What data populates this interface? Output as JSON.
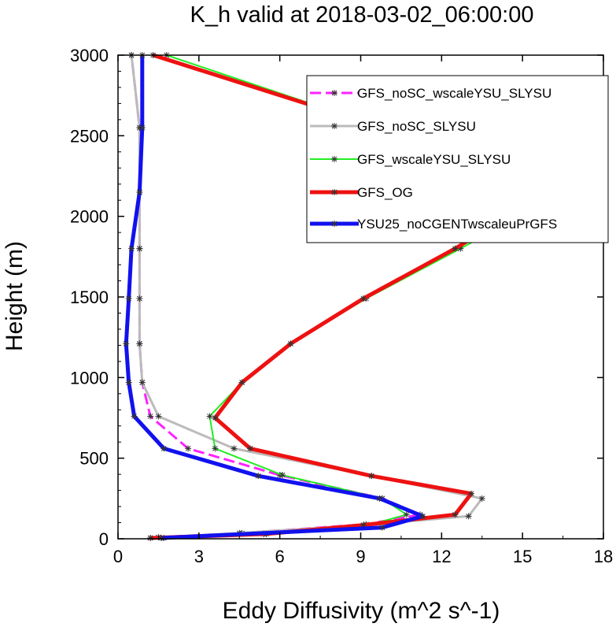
{
  "chart_data": {
    "type": "line",
    "title": "K_h valid at 2018-03-02_06:00:00",
    "xlabel": "Eddy Diffusivity (m^2 s^-1)",
    "ylabel": "Height (m)",
    "xlim": [
      0,
      18
    ],
    "ylim": [
      0,
      3000
    ],
    "xticks": [
      0,
      3,
      6,
      9,
      12,
      15,
      18
    ],
    "yticks": [
      0,
      500,
      1000,
      1500,
      2000,
      2500,
      3000
    ],
    "legend_position": "top-right",
    "series": [
      {
        "name": "GFS_noSC_wscaleYSU_SLYSU",
        "color": "#ff22ff",
        "dash": "dashed",
        "width": 3,
        "points": [
          [
            1.5,
            10
          ],
          [
            4.6,
            35
          ],
          [
            9.2,
            90
          ],
          [
            11.2,
            150
          ],
          [
            9.8,
            250
          ],
          [
            6,
            395
          ],
          [
            2.6,
            560
          ],
          [
            1.2,
            760
          ],
          [
            0.9,
            970
          ],
          [
            0.8,
            1210
          ],
          [
            0.8,
            1490
          ],
          [
            0.8,
            1800
          ],
          [
            0.8,
            2150
          ],
          [
            0.8,
            2550
          ],
          [
            0.5,
            3000
          ]
        ]
      },
      {
        "name": "GFS_noSC_SLYSU",
        "color": "#bbbbbb",
        "dash": "solid",
        "width": 3,
        "points": [
          [
            1.2,
            5
          ],
          [
            4.5,
            35
          ],
          [
            9.1,
            85
          ],
          [
            13,
            140
          ],
          [
            13.5,
            250
          ],
          [
            9.4,
            390
          ],
          [
            4.3,
            560
          ],
          [
            1.5,
            760
          ],
          [
            0.9,
            970
          ],
          [
            0.8,
            1210
          ],
          [
            0.8,
            1490
          ],
          [
            0.8,
            1800
          ],
          [
            0.8,
            2150
          ],
          [
            0.8,
            2550
          ],
          [
            0.5,
            3000
          ]
        ]
      },
      {
        "name": "GFS_wscaleYSU_SLYSU",
        "color": "#22ee22",
        "dash": "solid",
        "width": 2,
        "points": [
          [
            1.7,
            5
          ],
          [
            5.4,
            30
          ],
          [
            9.2,
            80
          ],
          [
            10.7,
            150
          ],
          [
            9.8,
            250
          ],
          [
            6.1,
            395
          ],
          [
            3.6,
            560
          ],
          [
            3.4,
            760
          ],
          [
            4.6,
            970
          ],
          [
            6.4,
            1210
          ],
          [
            9.2,
            1490
          ],
          [
            12.7,
            1800
          ],
          [
            16.5,
            2150
          ],
          [
            9.8,
            2550
          ],
          [
            1.8,
            3000
          ]
        ]
      },
      {
        "name": "GFS_OG",
        "color": "#ee1111",
        "dash": "solid",
        "width": 5,
        "points": [
          [
            1.2,
            5
          ],
          [
            5.5,
            30
          ],
          [
            9.1,
            85
          ],
          [
            12.5,
            150
          ],
          [
            13.1,
            280
          ],
          [
            9.4,
            390
          ],
          [
            4.9,
            560
          ],
          [
            3.6,
            750
          ],
          [
            4.6,
            970
          ],
          [
            6.4,
            1210
          ],
          [
            9.1,
            1490
          ],
          [
            12.5,
            1800
          ],
          [
            15.9,
            2150
          ],
          [
            9.8,
            2550
          ],
          [
            1.3,
            3000
          ]
        ]
      },
      {
        "name": "YSU25_noCGENTwscaleuPrGFS",
        "color": "#1111ee",
        "dash": "solid",
        "width": 5,
        "points": [
          [
            1.6,
            5
          ],
          [
            9.8,
            70
          ],
          [
            11.3,
            140
          ],
          [
            9.7,
            250
          ],
          [
            5.2,
            390
          ],
          [
            1.7,
            560
          ],
          [
            0.6,
            760
          ],
          [
            0.4,
            970
          ],
          [
            0.3,
            1210
          ],
          [
            0.4,
            1490
          ],
          [
            0.5,
            1800
          ],
          [
            0.8,
            2150
          ],
          [
            0.9,
            2550
          ],
          [
            0.9,
            3000
          ]
        ]
      }
    ]
  }
}
